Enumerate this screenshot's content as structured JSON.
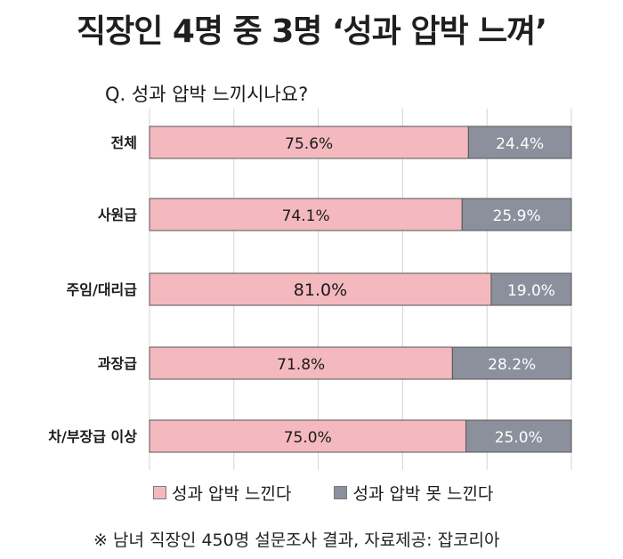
{
  "headline": "직장인 4명 중 3명 ‘성과 압박 느껴’",
  "footnote": "※ 남녀 직장인 450명 설문조사 결과, 자료제공: 잡코리아",
  "colors": {
    "felt": "#f3b9be",
    "not_felt": "#8b909c"
  },
  "chart_data": {
    "type": "bar",
    "orientation": "horizontal",
    "stacked": true,
    "title": "Q. 성과 압박 느끼시나요?",
    "categories": [
      "전체",
      "사원급",
      "주임/대리급",
      "과장급",
      "차/부장급 이상"
    ],
    "series": [
      {
        "name": "성과 압박 느낀다",
        "values": [
          75.6,
          74.1,
          81.0,
          71.8,
          75.0
        ],
        "labels": [
          "75.6%",
          "74.1%",
          "81.0%",
          "71.8%",
          "75.0%"
        ]
      },
      {
        "name": "성과 압박 못 느낀다",
        "values": [
          24.4,
          25.9,
          19.0,
          28.2,
          25.0
        ],
        "labels": [
          "24.4%",
          "25.9%",
          "19.0%",
          "28.2%",
          "25.0%"
        ]
      }
    ],
    "xlim": [
      0,
      100
    ],
    "grid": true,
    "legend": "bottom"
  }
}
